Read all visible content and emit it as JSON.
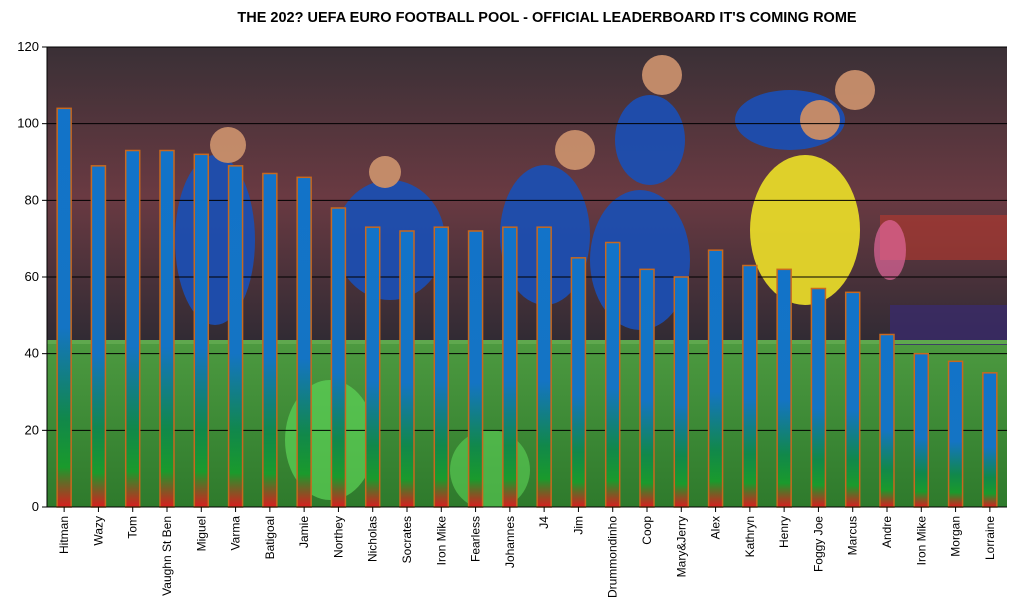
{
  "chart_data": {
    "type": "bar",
    "title": "THE 202? UEFA EURO FOOTBALL POOL - OFFICIAL LEADERBOARD IT'S COMING ROME",
    "xlabel": "",
    "ylabel": "",
    "ylim": [
      0,
      120
    ],
    "yticks": [
      "0",
      "20",
      "40",
      "60",
      "80",
      "100",
      "120"
    ],
    "grid": true,
    "legend": "none",
    "categories": [
      "Hitman",
      "Wazy",
      "Tom",
      "Vaughn St Ben",
      "Miguel",
      "Varma",
      "Batigoal",
      "Jamie",
      "Northey",
      "Nicholas",
      "Socrates",
      "Iron Mike",
      "Fearless",
      "Johannes",
      "J4",
      "Jim",
      "Drummondinho",
      "Coop",
      "Mary&Jerry",
      "Alex",
      "Kathryn",
      "Henry",
      "Foggy Joe",
      "Marcus",
      "Andre",
      "Iron Mike",
      "Morgan",
      "Lorraine"
    ],
    "values": [
      104,
      89,
      93,
      93,
      92,
      89,
      87,
      86,
      78,
      73,
      72,
      73,
      72,
      73,
      73,
      65,
      69,
      62,
      60,
      67,
      63,
      62,
      57,
      56,
      45,
      40,
      38,
      35
    ],
    "colors": {
      "bar_top": "#1273c9",
      "bar_mid": "#0e8a3a",
      "bar_bottom": "#d81e1e",
      "bar_outline": "#c8681e",
      "stadium_dark": "#2a2530",
      "crowd": "#7a3a40",
      "pitch": "#3f8f3a",
      "kit_blue": "#1d4fb0",
      "keeper_yellow": "#e6d92a"
    }
  }
}
